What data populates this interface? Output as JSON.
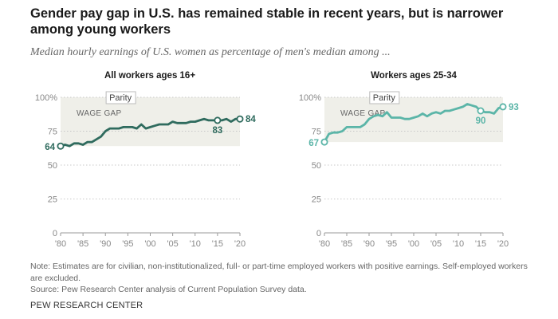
{
  "header": {
    "title": "Gender pay gap in U.S. has remained stable in recent years, but is narrower among young workers",
    "subtitle": "Median hourly earnings of U.S. women as percentage of men's median among ..."
  },
  "chart_data": [
    {
      "type": "line",
      "title": "All workers ages 16+",
      "color": "#2f6b5e",
      "ylim": [
        0,
        100
      ],
      "yticks": [
        0,
        25,
        50,
        75,
        100
      ],
      "ytick_labels": [
        "0",
        "25",
        "50",
        "75",
        "100%"
      ],
      "xlim": [
        1980,
        2020
      ],
      "xticks": [
        1980,
        1985,
        1990,
        1995,
        2000,
        2005,
        2010,
        2015,
        2020
      ],
      "xtick_labels": [
        "'80",
        "'85",
        "'90",
        "'95",
        "'00",
        "'05",
        "'10",
        "'15",
        "'20"
      ],
      "band_label": "WAGE GAP",
      "parity_label": "Parity",
      "x": [
        1980,
        1981,
        1982,
        1983,
        1984,
        1985,
        1986,
        1987,
        1988,
        1989,
        1990,
        1991,
        1992,
        1993,
        1994,
        1995,
        1996,
        1997,
        1998,
        1999,
        2000,
        2001,
        2002,
        2003,
        2004,
        2005,
        2006,
        2007,
        2008,
        2009,
        2010,
        2011,
        2012,
        2013,
        2014,
        2015,
        2016,
        2017,
        2018,
        2019,
        2020
      ],
      "y": [
        64,
        65,
        64,
        66,
        66,
        65,
        67,
        67,
        69,
        71,
        75,
        77,
        77,
        77,
        78,
        78,
        78,
        77,
        80,
        77,
        78,
        79,
        80,
        80,
        80,
        82,
        81,
        81,
        81,
        82,
        82,
        83,
        84,
        83,
        83,
        83,
        83,
        84,
        82,
        84,
        84
      ],
      "point_labels": [
        {
          "x": 1980,
          "y": 64,
          "text": "64"
        },
        {
          "x": 2015,
          "y": 83,
          "text": "83"
        },
        {
          "x": 2020,
          "y": 84,
          "text": "84"
        }
      ]
    },
    {
      "type": "line",
      "title": "Workers ages 25-34",
      "color": "#5bb5a8",
      "ylim": [
        0,
        100
      ],
      "yticks": [
        0,
        25,
        50,
        75,
        100
      ],
      "ytick_labels": [
        "0",
        "25",
        "50",
        "75",
        "100%"
      ],
      "xlim": [
        1980,
        2020
      ],
      "xticks": [
        1980,
        1985,
        1990,
        1995,
        2000,
        2005,
        2010,
        2015,
        2020
      ],
      "xtick_labels": [
        "'80",
        "'85",
        "'90",
        "'95",
        "'00",
        "'05",
        "'10",
        "'15",
        "'20"
      ],
      "band_label": "WAGE GAP",
      "parity_label": "Parity",
      "x": [
        1980,
        1981,
        1982,
        1983,
        1984,
        1985,
        1986,
        1987,
        1988,
        1989,
        1990,
        1991,
        1992,
        1993,
        1994,
        1995,
        1996,
        1997,
        1998,
        1999,
        2000,
        2001,
        2002,
        2003,
        2004,
        2005,
        2006,
        2007,
        2008,
        2009,
        2010,
        2011,
        2012,
        2013,
        2014,
        2015,
        2016,
        2017,
        2018,
        2019,
        2020
      ],
      "y": [
        67,
        73,
        74,
        74,
        75,
        78,
        78,
        78,
        78,
        80,
        84,
        86,
        87,
        86,
        89,
        85,
        85,
        85,
        84,
        84,
        85,
        86,
        88,
        86,
        88,
        89,
        88,
        90,
        90,
        91,
        92,
        93,
        95,
        94,
        93,
        90,
        89,
        89,
        88,
        92,
        93
      ],
      "point_labels": [
        {
          "x": 1980,
          "y": 67,
          "text": "67"
        },
        {
          "x": 2015,
          "y": 90,
          "text": "90"
        },
        {
          "x": 2020,
          "y": 93,
          "text": "93"
        }
      ]
    }
  ],
  "footer": {
    "note": "Note: Estimates are for civilian, non-institutionalized, full- or part-time employed workers with positive earnings. Self-employed workers are excluded.",
    "source": "Source: Pew Research Center analysis of Current Population Survey data.",
    "brand": "PEW RESEARCH CENTER"
  }
}
